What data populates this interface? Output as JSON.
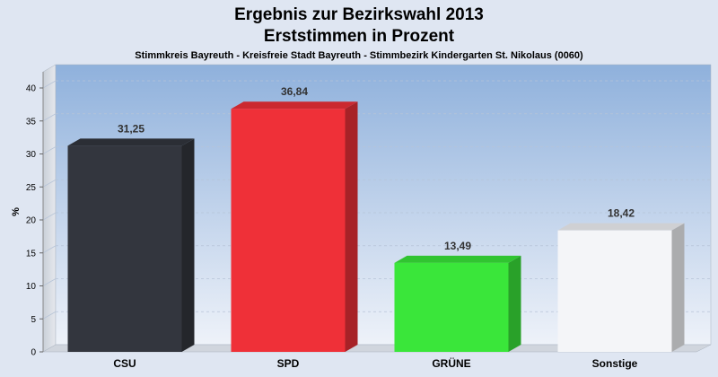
{
  "chart_data": {
    "type": "bar",
    "title": "Ergebnis zur Bezirkswahl 2013",
    "title_line2": "Erststimmen in Prozent",
    "subtitle": "Stimmkreis Bayreuth - Kreisfreie Stadt Bayreuth - Stimmbezirk Kindergarten St. Nikolaus (0060)",
    "ylabel": "%",
    "xlabel": "",
    "ylim": [
      0,
      40
    ],
    "yticks": [
      0,
      5,
      10,
      15,
      20,
      25,
      30,
      35,
      40
    ],
    "grid": true,
    "categories": [
      "CSU",
      "SPD",
      "GRÜNE",
      "Sonstige"
    ],
    "values": [
      31.25,
      36.84,
      13.49,
      18.42
    ],
    "value_labels": [
      "31,25",
      "36,84",
      "13,49",
      "18,42"
    ],
    "colors": [
      "#33363e",
      "#ef3038",
      "#3ae63a",
      "#f4f5f8"
    ]
  }
}
